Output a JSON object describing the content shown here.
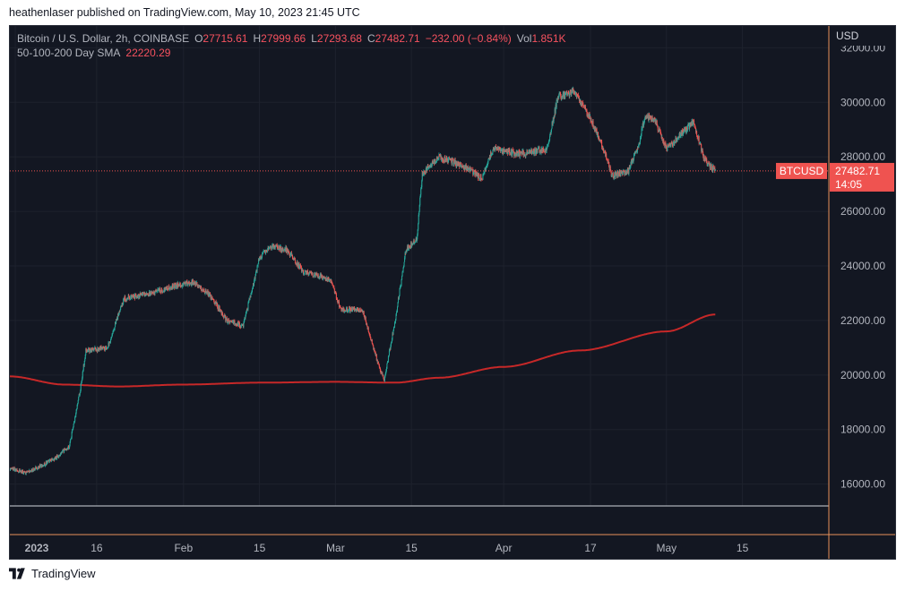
{
  "header": {
    "publisher_line": "heathenlaser published on TradingView.com, May 10, 2023 21:45 UTC"
  },
  "legend": {
    "symbol": "Bitcoin / U.S. Dollar, 2h, COINBASE",
    "o_label": "O",
    "o_value": "27715.61",
    "h_label": "H",
    "h_value": "27999.66",
    "l_label": "L",
    "l_value": "27293.68",
    "c_label": "C",
    "c_value": "27482.71",
    "change": "−232.00 (−0.84%)",
    "vol_label": "Vol",
    "vol_value": "1.851K",
    "sma_label": "50-100-200 Day SMA",
    "sma_value": "22220.29"
  },
  "footer": {
    "brand": "TradingView"
  },
  "colors": {
    "background": "#131722",
    "up": "#26a69a",
    "down": "#ef5350",
    "sma": "#c62828",
    "price_tag": "#ef5350",
    "grid": "#1e222d",
    "text": "#b2b5be"
  },
  "chart_data": {
    "type": "candlestick",
    "symbol": "BTCUSD",
    "interval": "2h",
    "currency_label": "USD",
    "y_axis": {
      "ticks": [
        16000,
        18000,
        20000,
        22000,
        24000,
        26000,
        28000,
        30000,
        32000
      ],
      "ylim": [
        15200,
        32800
      ]
    },
    "x_axis": {
      "labels": [
        "2023",
        "16",
        "Feb",
        "15",
        "Mar",
        "15",
        "Apr",
        "17",
        "May",
        "15"
      ],
      "label_dates": [
        "2023-01-01",
        "2023-01-16",
        "2023-02-01",
        "2023-02-15",
        "2023-03-01",
        "2023-03-15",
        "2023-04-01",
        "2023-04-17",
        "2023-05-01",
        "2023-05-15"
      ]
    },
    "last_price": {
      "label": "BTCUSD",
      "value": 27482.71,
      "countdown": "14:05"
    },
    "price_keypoints": [
      {
        "date": "2022-12-31",
        "price": 16600
      },
      {
        "date": "2023-01-03",
        "price": 16400
      },
      {
        "date": "2023-01-08",
        "price": 16900
      },
      {
        "date": "2023-01-11",
        "price": 17400
      },
      {
        "date": "2023-01-13",
        "price": 19500
      },
      {
        "date": "2023-01-14",
        "price": 20900
      },
      {
        "date": "2023-01-18",
        "price": 21000
      },
      {
        "date": "2023-01-21",
        "price": 22800
      },
      {
        "date": "2023-01-26",
        "price": 23000
      },
      {
        "date": "2023-01-31",
        "price": 23300
      },
      {
        "date": "2023-02-03",
        "price": 23400
      },
      {
        "date": "2023-02-06",
        "price": 22900
      },
      {
        "date": "2023-02-09",
        "price": 22000
      },
      {
        "date": "2023-02-12",
        "price": 21800
      },
      {
        "date": "2023-02-15",
        "price": 24300
      },
      {
        "date": "2023-02-17",
        "price": 24700
      },
      {
        "date": "2023-02-20",
        "price": 24600
      },
      {
        "date": "2023-02-23",
        "price": 23800
      },
      {
        "date": "2023-02-28",
        "price": 23500
      },
      {
        "date": "2023-03-02",
        "price": 22400
      },
      {
        "date": "2023-03-06",
        "price": 22400
      },
      {
        "date": "2023-03-09",
        "price": 20300
      },
      {
        "date": "2023-03-10",
        "price": 19800
      },
      {
        "date": "2023-03-12",
        "price": 22000
      },
      {
        "date": "2023-03-14",
        "price": 24600
      },
      {
        "date": "2023-03-16",
        "price": 25000
      },
      {
        "date": "2023-03-17",
        "price": 27400
      },
      {
        "date": "2023-03-20",
        "price": 28000
      },
      {
        "date": "2023-03-23",
        "price": 27800
      },
      {
        "date": "2023-03-25",
        "price": 27600
      },
      {
        "date": "2023-03-28",
        "price": 27200
      },
      {
        "date": "2023-03-30",
        "price": 28300
      },
      {
        "date": "2023-04-04",
        "price": 28100
      },
      {
        "date": "2023-04-09",
        "price": 28300
      },
      {
        "date": "2023-04-11",
        "price": 30200
      },
      {
        "date": "2023-04-14",
        "price": 30400
      },
      {
        "date": "2023-04-17",
        "price": 29400
      },
      {
        "date": "2023-04-19",
        "price": 28500
      },
      {
        "date": "2023-04-21",
        "price": 27300
      },
      {
        "date": "2023-04-24",
        "price": 27500
      },
      {
        "date": "2023-04-26",
        "price": 28500
      },
      {
        "date": "2023-04-27",
        "price": 29500
      },
      {
        "date": "2023-04-29",
        "price": 29300
      },
      {
        "date": "2023-05-01",
        "price": 28300
      },
      {
        "date": "2023-05-03",
        "price": 28700
      },
      {
        "date": "2023-05-06",
        "price": 29300
      },
      {
        "date": "2023-05-08",
        "price": 27900
      },
      {
        "date": "2023-05-10",
        "price": 27482.71
      }
    ],
    "sma_series": {
      "name": "50-100-200 Day SMA",
      "points": [
        {
          "date": "2022-12-31",
          "value": 19950
        },
        {
          "date": "2023-01-10",
          "value": 19650
        },
        {
          "date": "2023-01-20",
          "value": 19580
        },
        {
          "date": "2023-02-01",
          "value": 19650
        },
        {
          "date": "2023-02-15",
          "value": 19720
        },
        {
          "date": "2023-03-01",
          "value": 19750
        },
        {
          "date": "2023-03-12",
          "value": 19720
        },
        {
          "date": "2023-03-20",
          "value": 19900
        },
        {
          "date": "2023-04-01",
          "value": 20300
        },
        {
          "date": "2023-04-15",
          "value": 20900
        },
        {
          "date": "2023-05-01",
          "value": 21600
        },
        {
          "date": "2023-05-10",
          "value": 22220.29
        }
      ]
    }
  }
}
